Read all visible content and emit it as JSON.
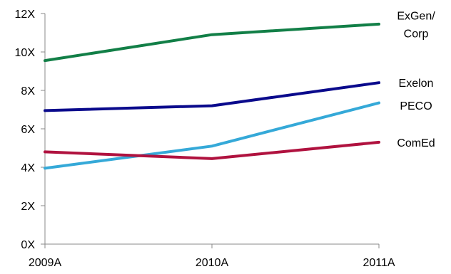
{
  "chart_data": {
    "type": "line",
    "categories": [
      "2009A",
      "2010A",
      "2011A"
    ],
    "ylim": [
      0,
      12
    ],
    "yticks": [
      "0X",
      "2X",
      "4X",
      "6X",
      "8X",
      "10X",
      "12X"
    ],
    "grid": false,
    "legend": "inline-right",
    "series": [
      {
        "name": "ExGen/\nCorp",
        "label_lines": [
          "ExGen/",
          "Corp"
        ],
        "color": "#127F47",
        "values": [
          9.55,
          10.9,
          11.45
        ]
      },
      {
        "name": "Exelon",
        "label_lines": [
          "Exelon"
        ],
        "color": "#0A0A8C",
        "values": [
          6.95,
          7.2,
          8.4
        ]
      },
      {
        "name": "PECO",
        "label_lines": [
          "PECO"
        ],
        "color": "#35A9D8",
        "values": [
          3.95,
          5.1,
          7.35
        ]
      },
      {
        "name": "ComEd",
        "label_lines": [
          "ComEd"
        ],
        "color": "#B0123F",
        "values": [
          4.8,
          4.45,
          5.3
        ]
      }
    ]
  }
}
